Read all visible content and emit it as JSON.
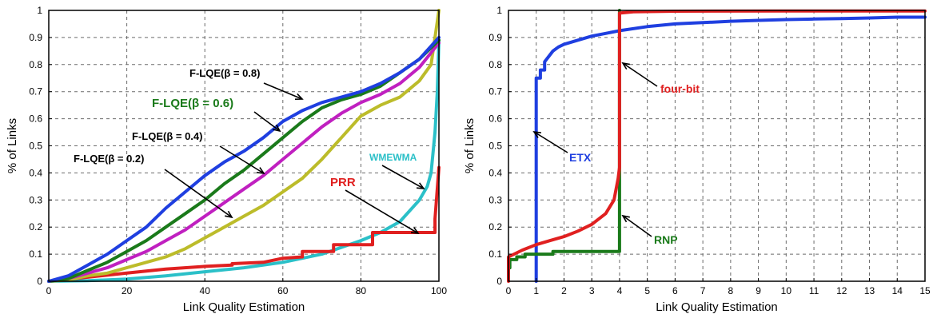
{
  "chart_data": [
    {
      "type": "line",
      "title": "",
      "xlabel": "Link Quality Estimation",
      "ylabel": "% of Links",
      "xlim": [
        0,
        100
      ],
      "ylim": [
        0,
        1
      ],
      "xticks": [
        0,
        20,
        40,
        60,
        80,
        100
      ],
      "yticks": [
        0,
        0.1,
        0.2,
        0.3,
        0.4,
        0.5,
        0.6,
        0.7,
        0.8,
        0.9,
        1
      ],
      "grid": true,
      "legend": "none",
      "series": [
        {
          "name": "F-LQE(β = 0.8)",
          "color": "#1f3fe0",
          "points": [
            [
              0,
              0
            ],
            [
              5,
              0.02
            ],
            [
              10,
              0.06
            ],
            [
              15,
              0.1
            ],
            [
              20,
              0.15
            ],
            [
              25,
              0.2
            ],
            [
              30,
              0.27
            ],
            [
              35,
              0.33
            ],
            [
              40,
              0.39
            ],
            [
              45,
              0.44
            ],
            [
              50,
              0.48
            ],
            [
              55,
              0.53
            ],
            [
              60,
              0.59
            ],
            [
              65,
              0.63
            ],
            [
              70,
              0.66
            ],
            [
              75,
              0.68
            ],
            [
              80,
              0.7
            ],
            [
              85,
              0.73
            ],
            [
              90,
              0.77
            ],
            [
              95,
              0.82
            ],
            [
              100,
              0.9
            ]
          ]
        },
        {
          "name": "F-LQE(β = 0.6)",
          "color": "#1a7a1a",
          "points": [
            [
              0,
              0
            ],
            [
              5,
              0.01
            ],
            [
              10,
              0.04
            ],
            [
              15,
              0.07
            ],
            [
              20,
              0.11
            ],
            [
              25,
              0.15
            ],
            [
              30,
              0.2
            ],
            [
              35,
              0.25
            ],
            [
              40,
              0.3
            ],
            [
              45,
              0.36
            ],
            [
              50,
              0.41
            ],
            [
              55,
              0.47
            ],
            [
              60,
              0.53
            ],
            [
              65,
              0.59
            ],
            [
              70,
              0.64
            ],
            [
              75,
              0.67
            ],
            [
              80,
              0.69
            ],
            [
              85,
              0.72
            ],
            [
              90,
              0.77
            ],
            [
              95,
              0.82
            ],
            [
              100,
              0.89
            ]
          ]
        },
        {
          "name": "F-LQE(β = 0.4)",
          "color": "#c020c0",
          "points": [
            [
              0,
              0
            ],
            [
              5,
              0.01
            ],
            [
              10,
              0.03
            ],
            [
              15,
              0.05
            ],
            [
              20,
              0.08
            ],
            [
              25,
              0.11
            ],
            [
              30,
              0.15
            ],
            [
              35,
              0.19
            ],
            [
              40,
              0.24
            ],
            [
              45,
              0.29
            ],
            [
              50,
              0.34
            ],
            [
              55,
              0.39
            ],
            [
              60,
              0.45
            ],
            [
              65,
              0.51
            ],
            [
              70,
              0.57
            ],
            [
              75,
              0.62
            ],
            [
              80,
              0.66
            ],
            [
              85,
              0.69
            ],
            [
              90,
              0.73
            ],
            [
              95,
              0.79
            ],
            [
              100,
              0.88
            ]
          ]
        },
        {
          "name": "F-LQE(β = 0.2)",
          "color": "#bcbc2a",
          "points": [
            [
              0,
              0
            ],
            [
              5,
              0.005
            ],
            [
              10,
              0.02
            ],
            [
              15,
              0.03
            ],
            [
              20,
              0.05
            ],
            [
              25,
              0.07
            ],
            [
              30,
              0.09
            ],
            [
              35,
              0.12
            ],
            [
              40,
              0.16
            ],
            [
              45,
              0.2
            ],
            [
              50,
              0.24
            ],
            [
              55,
              0.28
            ],
            [
              60,
              0.33
            ],
            [
              65,
              0.38
            ],
            [
              70,
              0.45
            ],
            [
              75,
              0.53
            ],
            [
              80,
              0.61
            ],
            [
              85,
              0.65
            ],
            [
              90,
              0.68
            ],
            [
              95,
              0.74
            ],
            [
              98,
              0.8
            ],
            [
              100,
              1.0
            ]
          ]
        },
        {
          "name": "WMEWMA",
          "color": "#2bc0c8",
          "points": [
            [
              0,
              0
            ],
            [
              10,
              0.002
            ],
            [
              20,
              0.008
            ],
            [
              30,
              0.02
            ],
            [
              40,
              0.035
            ],
            [
              50,
              0.05
            ],
            [
              60,
              0.07
            ],
            [
              65,
              0.085
            ],
            [
              70,
              0.1
            ],
            [
              75,
              0.125
            ],
            [
              80,
              0.15
            ],
            [
              85,
              0.18
            ],
            [
              90,
              0.22
            ],
            [
              95,
              0.3
            ],
            [
              97,
              0.35
            ],
            [
              98,
              0.4
            ],
            [
              99,
              0.55
            ],
            [
              99.6,
              0.7
            ],
            [
              100,
              0.89
            ]
          ]
        },
        {
          "name": "PRR",
          "color": "#e02020",
          "points": [
            [
              0,
              0
            ],
            [
              10,
              0.015
            ],
            [
              20,
              0.03
            ],
            [
              30,
              0.045
            ],
            [
              40,
              0.055
            ],
            [
              47,
              0.06
            ],
            [
              47,
              0.065
            ],
            [
              55,
              0.07
            ],
            [
              60,
              0.085
            ],
            [
              65,
              0.09
            ],
            [
              65,
              0.11
            ],
            [
              73,
              0.11
            ],
            [
              73,
              0.135
            ],
            [
              83,
              0.135
            ],
            [
              83,
              0.18
            ],
            [
              99,
              0.18
            ],
            [
              99,
              0.23
            ],
            [
              100,
              0.42
            ]
          ]
        }
      ],
      "annotations": [
        {
          "text": "F-LQE(β = 0.8)",
          "color": "#000000"
        },
        {
          "text": "F-LQE(β = 0.6)",
          "color": "#1a7a1a"
        },
        {
          "text": "F-LQE(β = 0.4)",
          "color": "#000000"
        },
        {
          "text": "F-LQE(β = 0.2)",
          "color": "#000000"
        },
        {
          "text": "WMEWMA",
          "color": "#2bc0c8"
        },
        {
          "text": "PRR",
          "color": "#e02020"
        }
      ]
    },
    {
      "type": "line",
      "title": "",
      "xlabel": "Link Quality Estimation",
      "ylabel": "% of Links",
      "xlim": [
        0,
        15
      ],
      "ylim": [
        0,
        1
      ],
      "xticks": [
        0,
        1,
        2,
        3,
        4,
        5,
        6,
        7,
        8,
        9,
        10,
        11,
        12,
        13,
        14,
        15
      ],
      "yticks": [
        0,
        0.1,
        0.2,
        0.3,
        0.4,
        0.5,
        0.6,
        0.7,
        0.8,
        0.9,
        1
      ],
      "grid": true,
      "legend": "none",
      "series": [
        {
          "name": "ETX",
          "color": "#1f3fe0",
          "points": [
            [
              1,
              0
            ],
            [
              1,
              0.75
            ],
            [
              1.15,
              0.75
            ],
            [
              1.15,
              0.78
            ],
            [
              1.3,
              0.78
            ],
            [
              1.3,
              0.81
            ],
            [
              1.45,
              0.83
            ],
            [
              1.6,
              0.85
            ],
            [
              1.8,
              0.865
            ],
            [
              2,
              0.875
            ],
            [
              2.5,
              0.89
            ],
            [
              3,
              0.905
            ],
            [
              3.5,
              0.915
            ],
            [
              4,
              0.925
            ],
            [
              5,
              0.94
            ],
            [
              6,
              0.95
            ],
            [
              7,
              0.955
            ],
            [
              8,
              0.96
            ],
            [
              9,
              0.963
            ],
            [
              10,
              0.966
            ],
            [
              11,
              0.968
            ],
            [
              12,
              0.97
            ],
            [
              13,
              0.972
            ],
            [
              14,
              0.975
            ],
            [
              15,
              0.975
            ]
          ]
        },
        {
          "name": "four-bit",
          "color": "#e02020",
          "points": [
            [
              0,
              0
            ],
            [
              0,
              0.09
            ],
            [
              0.5,
              0.115
            ],
            [
              1,
              0.135
            ],
            [
              1.5,
              0.15
            ],
            [
              2,
              0.165
            ],
            [
              2.5,
              0.185
            ],
            [
              3,
              0.21
            ],
            [
              3.5,
              0.25
            ],
            [
              3.8,
              0.3
            ],
            [
              3.95,
              0.38
            ],
            [
              4,
              0.42
            ],
            [
              4,
              0.99
            ],
            [
              4.5,
              0.995
            ],
            [
              6,
              0.997
            ],
            [
              10,
              0.998
            ],
            [
              15,
              0.998
            ]
          ]
        },
        {
          "name": "RNP",
          "color": "#1a7a1a",
          "points": [
            [
              0.05,
              0.05
            ],
            [
              0.05,
              0.08
            ],
            [
              0.3,
              0.08
            ],
            [
              0.3,
              0.09
            ],
            [
              0.6,
              0.09
            ],
            [
              0.6,
              0.1
            ],
            [
              1.6,
              0.1
            ],
            [
              1.6,
              0.11
            ],
            [
              4,
              0.11
            ],
            [
              4,
              0.3
            ],
            [
              4,
              1
            ]
          ]
        }
      ],
      "annotations": [
        {
          "text": "four-bit",
          "color": "#e02020"
        },
        {
          "text": "ETX",
          "color": "#1f3fe0"
        },
        {
          "text": "RNP",
          "color": "#1a7a1a"
        }
      ]
    }
  ]
}
